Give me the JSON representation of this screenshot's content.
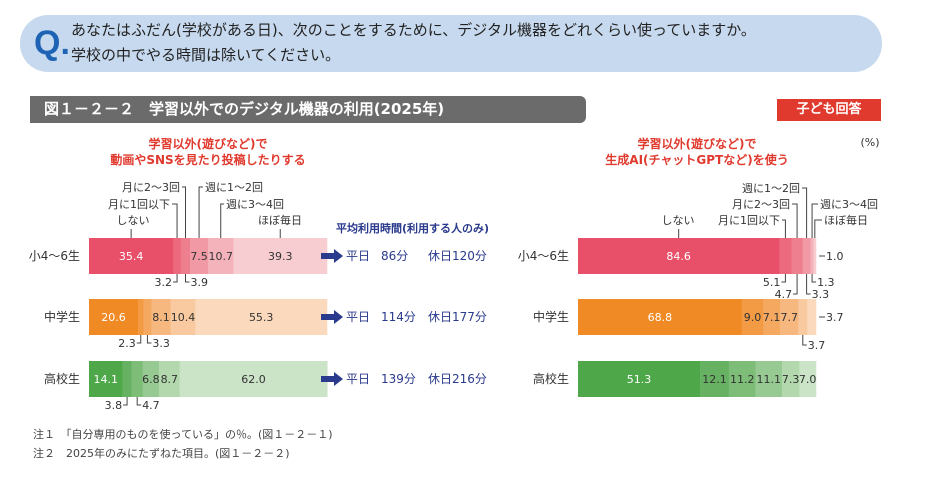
{
  "question": {
    "mark": "Q.",
    "line1": "あなたはふだん(学校がある日)、次のことをするために、デジタル機器をどれくらい使っていますか。",
    "line2": "学校の中でやる時間は除いてください。"
  },
  "figure_title": "図１－２－２　学習以外でのデジタル機器の利用(2025年)",
  "badge": "子ども回答",
  "unit": "(%)",
  "avg_time_header": "平均利用時間(利用する人のみ)",
  "avg_times": [
    {
      "weekday_label": "平日",
      "weekday": "86分",
      "holiday": "休日120分"
    },
    {
      "weekday_label": "平日",
      "weekday": "114分",
      "holiday": "休日177分"
    },
    {
      "weekday_label": "平日",
      "weekday": "139分",
      "holiday": "休日216分"
    }
  ],
  "notes": [
    "注１　「自分専用のものを使っている」の％。(図１－２－１)",
    "注２　2025年のみにたずねた項目。(図１－２－２)"
  ],
  "colors": {
    "elementary": [
      "#e8506a",
      "#ec6a7e",
      "#ee7f8f",
      "#f19aa6",
      "#f4b3bb",
      "#f8cdd2"
    ],
    "middle": [
      "#f08a24",
      "#f39a44",
      "#f5a860",
      "#f7b880",
      "#f9c9a0",
      "#fbd9bd"
    ],
    "high": [
      "#4ea84a",
      "#67b262",
      "#7dbd78",
      "#97ca92",
      "#b3d8ae",
      "#cbe4c7"
    ],
    "title_red": "#e03a2e",
    "arrow": "#2a3a8c"
  },
  "chart_data": [
    {
      "type": "bar",
      "orientation": "horizontal-stacked-100",
      "title": "学習以外(遊びなど)で\n動画やSNSを見たり投稿したりする",
      "categories": [
        "小4～6生",
        "中学生",
        "高校生"
      ],
      "series": [
        {
          "name": "しない",
          "values": [
            35.4,
            20.6,
            14.1
          ]
        },
        {
          "name": "月に1回以下",
          "values": [
            3.2,
            2.3,
            3.8
          ]
        },
        {
          "name": "月に2～3回",
          "values": [
            3.9,
            3.3,
            4.7
          ]
        },
        {
          "name": "週に1～2回",
          "values": [
            7.5,
            8.1,
            6.8
          ]
        },
        {
          "name": "週に3～4回",
          "values": [
            10.7,
            10.4,
            8.7
          ]
        },
        {
          "name": "ほぼ毎日",
          "values": [
            39.3,
            55.3,
            62.0
          ]
        }
      ],
      "xlim": [
        0,
        100
      ]
    },
    {
      "type": "bar",
      "orientation": "horizontal-stacked-100",
      "title": "学習以外(遊びなど)で\n生成AI(チャットGPTなど)を使う",
      "categories": [
        "小4～6生",
        "中学生",
        "高校生"
      ],
      "series": [
        {
          "name": "しない",
          "values": [
            84.6,
            68.8,
            51.3
          ]
        },
        {
          "name": "月に1回以下",
          "values": [
            5.1,
            9.0,
            12.1
          ]
        },
        {
          "name": "月に2～3回",
          "values": [
            4.7,
            7.1,
            11.2
          ]
        },
        {
          "name": "週に1～2回",
          "values": [
            3.3,
            7.7,
            11.1
          ]
        },
        {
          "name": "週に3～4回",
          "values": [
            1.3,
            3.7,
            7.3
          ]
        },
        {
          "name": "ほぼ毎日",
          "values": [
            1.0,
            3.7,
            7.0
          ]
        }
      ],
      "xlim": [
        0,
        100
      ]
    }
  ]
}
